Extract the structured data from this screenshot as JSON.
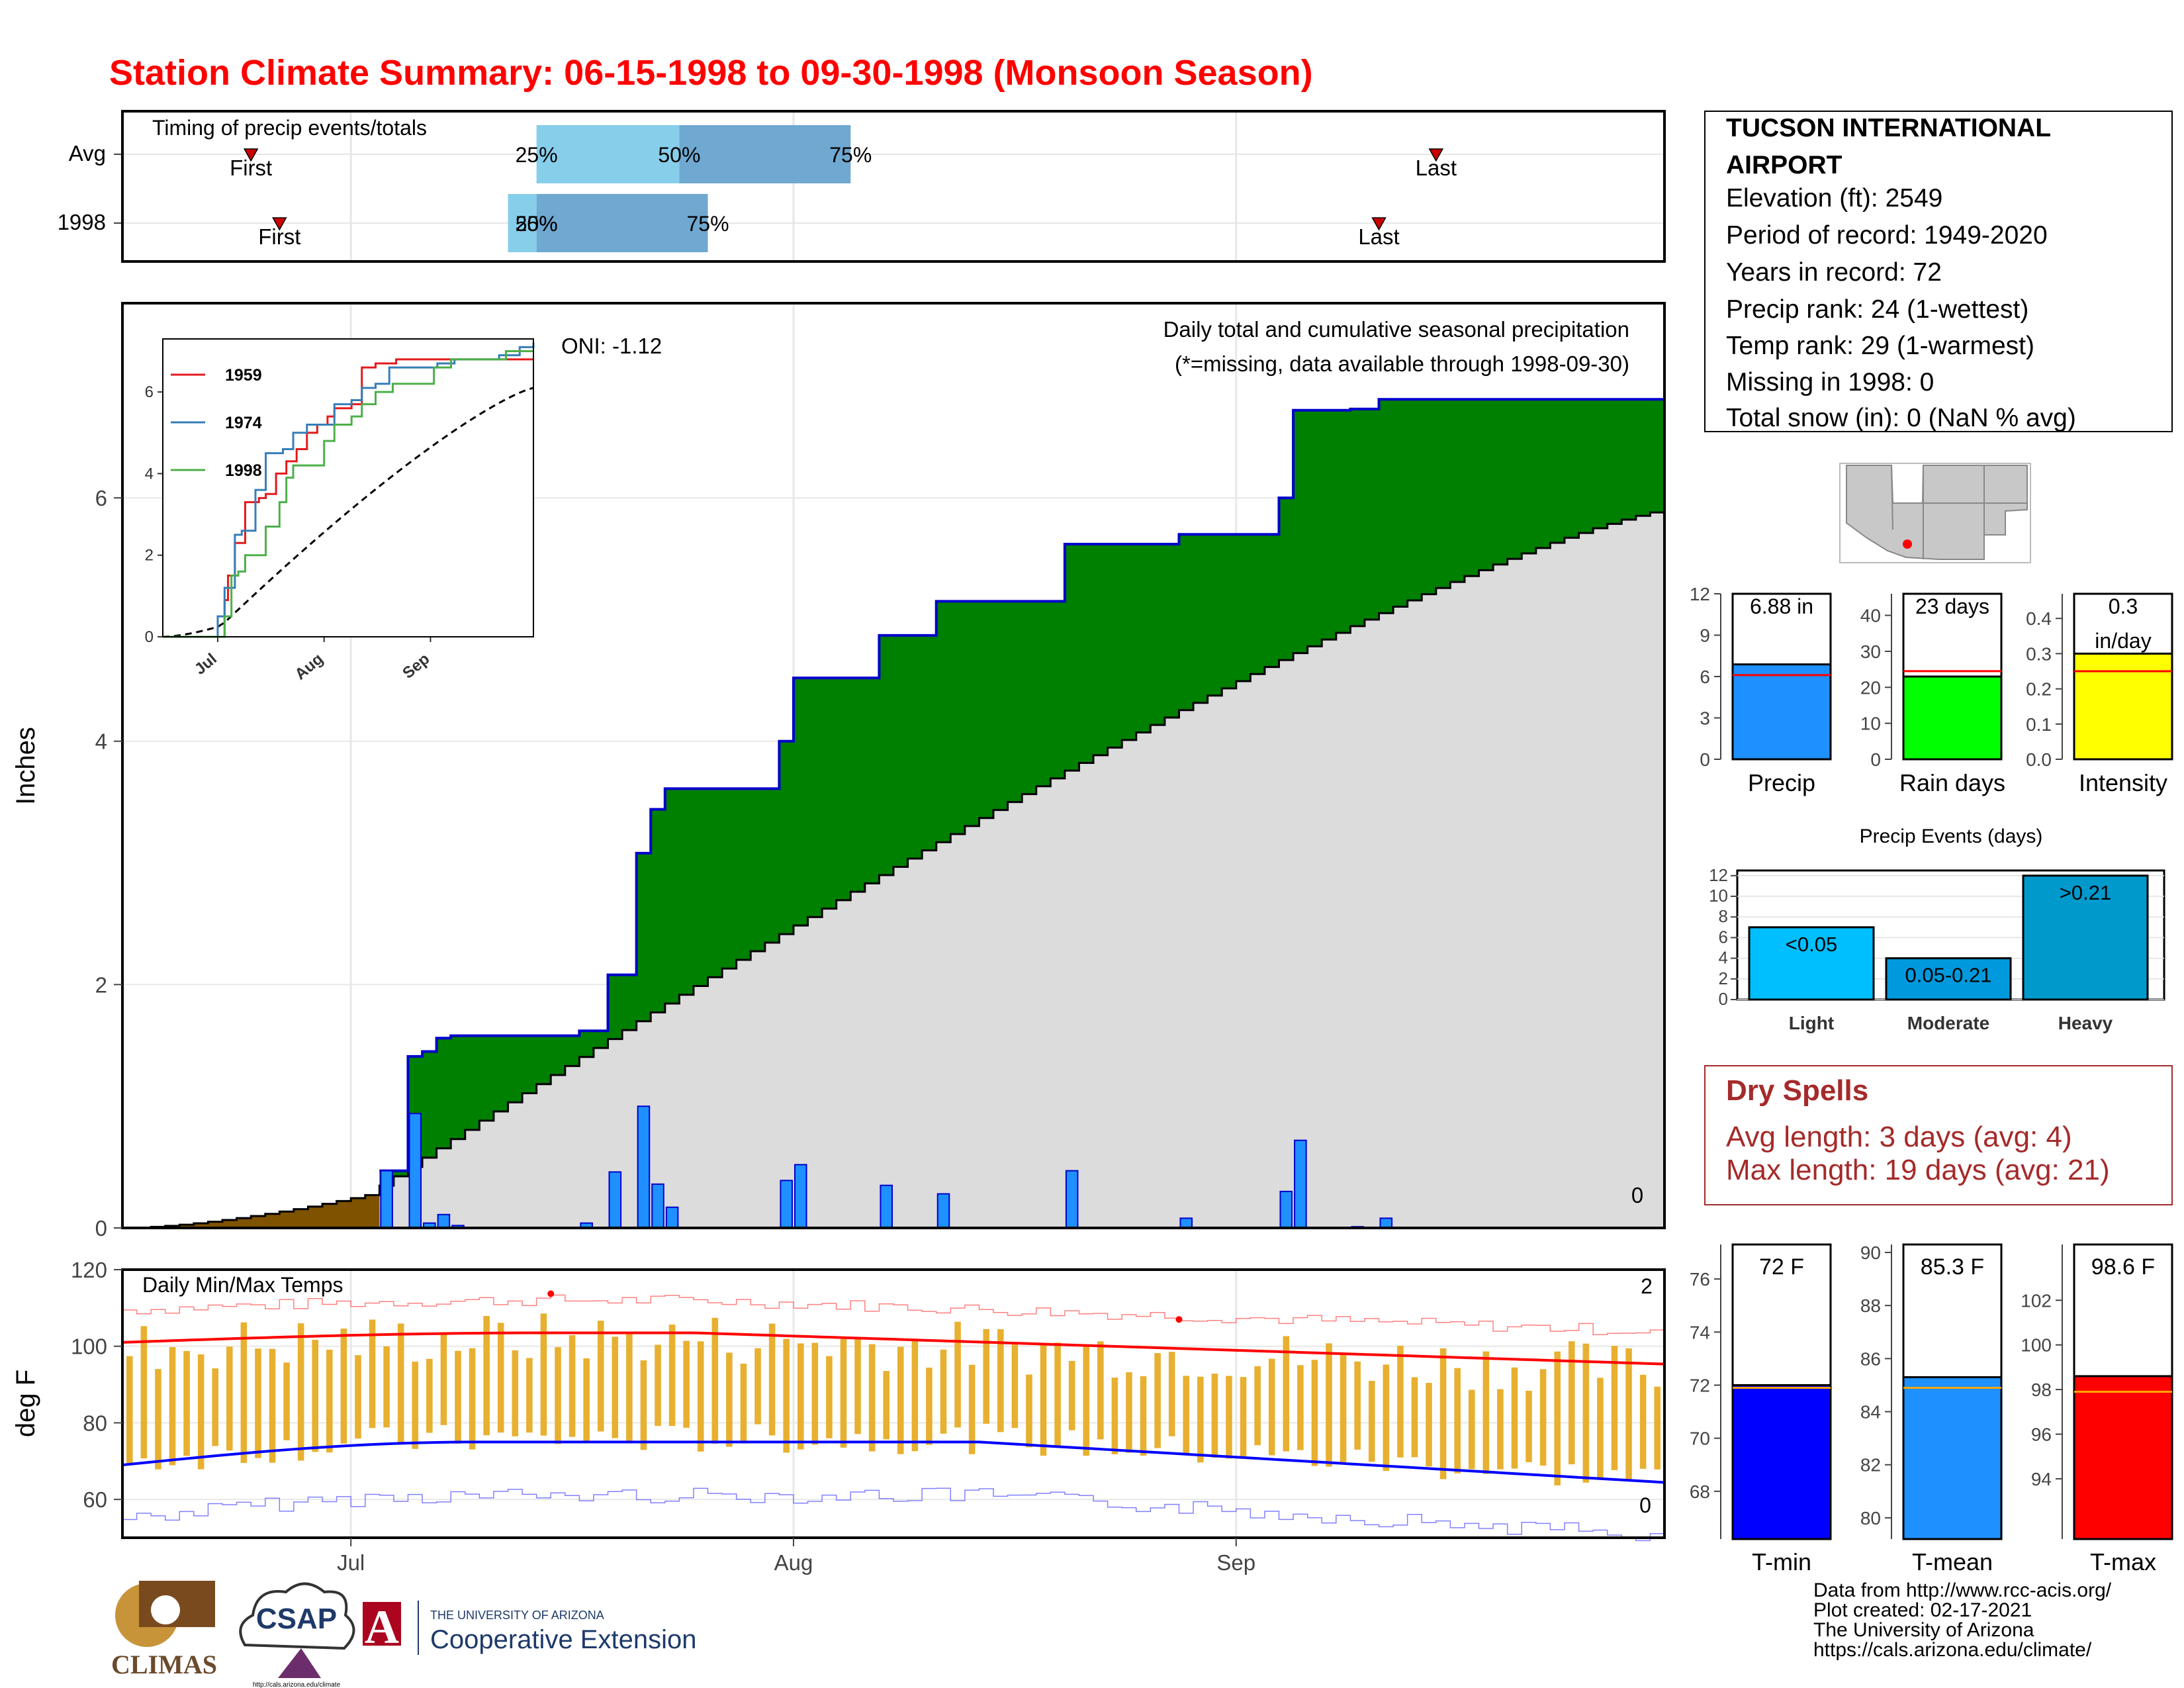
{
  "title": "Station Climate Summary: 06-15-1998 to 09-30-1998 (Monsoon Season)",
  "station": {
    "name_line1": "TUCSON INTERNATIONAL",
    "name_line2": "AIRPORT",
    "elevation": "Elevation (ft): 2549",
    "period": "Period of record: 1949-2020",
    "years": "Years in record: 72",
    "precip_rank": "Precip rank: 24 (1-wettest)",
    "temp_rank": "Temp rank: 29 (1-warmest)",
    "missing": "Missing in 1998: 0",
    "snow": "Total snow (in): 0 (NaN % avg)"
  },
  "dry_spells": {
    "title": "Dry Spells",
    "avg": "Avg length: 3 days (avg: 4)",
    "max": "Max length: 19 days (avg: 21)"
  },
  "footer": {
    "line1": "Data from http://www.rcc-acis.org/",
    "line2": "Plot created: 02-17-2021",
    "line3": "The University of Arizona",
    "line4": "https://cals.arizona.edu/climate/"
  },
  "logos": {
    "climas": "CLIMAS",
    "csap": "CSAP",
    "csap_url": "http://cals.arizona.edu/climate",
    "ua_small": "THE UNIVERSITY OF ARIZONA",
    "ua_big": "Cooperative Extension",
    "ua_letter": "A"
  },
  "colors": {
    "title": "#ff0000",
    "above_normal": "#008000",
    "cumulative_line": "#0000cd",
    "daily_bar": "#1e90ff",
    "normal_fill": "#dcdcdc",
    "pre_season": "#7f5200",
    "temp_bar": "#e8b030",
    "tmax_line": "#ff0000",
    "tmin_line": "#0000ff",
    "timing_light": "#87ceeb",
    "timing_dark": "#6fa8d0"
  },
  "chart_data": [
    {
      "id": "timing",
      "type": "bar",
      "title": "Timing of precip events/totals",
      "categories": [
        "Avg",
        "1998"
      ],
      "quartiles_day_of_season": {
        "Avg": [
          29,
          39,
          51
        ],
        "1998": [
          29,
          29,
          41
        ]
      },
      "range_light_start": {
        "Avg": 29,
        "1998": 27
      },
      "first_day": {
        "Avg": 9,
        "1998": 11
      },
      "last_day": {
        "Avg": 92,
        "1998": 88
      },
      "labels": {
        "q25": "25%",
        "q50": "50%",
        "q75": "75%",
        "first": "First",
        "last": "Last"
      }
    },
    {
      "id": "precip",
      "type": "area",
      "title": "Daily total and cumulative seasonal precipitation",
      "subtitle": "(*=missing, data available through 1998-09-30)",
      "annotation": "ONI: -1.12",
      "missing_count": "0",
      "ylabel": "Inches",
      "ylim": [
        0,
        7.6
      ],
      "yticks": [
        0,
        2,
        4,
        6
      ],
      "xlim_days": [
        0,
        108
      ],
      "xticks": [
        {
          "day": 16,
          "label": "Jul"
        },
        {
          "day": 47,
          "label": "Aug"
        },
        {
          "day": 78,
          "label": "Sep"
        }
      ],
      "daily_1998": [
        [
          18,
          0.47
        ],
        [
          20,
          0.94
        ],
        [
          21,
          0.04
        ],
        [
          22,
          0.11
        ],
        [
          23,
          0.02
        ],
        [
          32,
          0.04
        ],
        [
          34,
          0.46
        ],
        [
          36,
          1.0
        ],
        [
          37,
          0.36
        ],
        [
          38,
          0.17
        ],
        [
          46,
          0.39
        ],
        [
          47,
          0.52
        ],
        [
          53,
          0.35
        ],
        [
          57,
          0.28
        ],
        [
          66,
          0.47
        ],
        [
          74,
          0.08
        ],
        [
          81,
          0.3
        ],
        [
          82,
          0.72
        ],
        [
          86,
          0.01
        ],
        [
          88,
          0.08
        ]
      ],
      "cumulative_normal_end": 5.9,
      "pre_season_cumulative_end_day17": 0.27
    },
    {
      "id": "inset",
      "type": "line",
      "series": [
        {
          "name": "1959"
        },
        {
          "name": "1974"
        },
        {
          "name": "1998"
        }
      ],
      "ylim": [
        0,
        7.3
      ],
      "yticks": [
        0,
        2,
        4,
        6
      ],
      "xticks": [
        "Jul",
        "Aug",
        "Sep"
      ]
    },
    {
      "id": "temps",
      "type": "line",
      "title": "Daily Min/Max Temps",
      "ylabel": "deg F",
      "ylim": [
        50,
        120
      ],
      "yticks": [
        60,
        80,
        100,
        120
      ],
      "count_hot": "2",
      "count_cold": "0",
      "record_high_days": [
        30,
        74
      ]
    },
    {
      "id": "precip_summary",
      "type": "bar",
      "categories": [
        "Precip",
        "Rain days",
        "Intensity"
      ],
      "values": [
        6.88,
        23,
        0.3
      ],
      "normals": [
        6.1,
        24.5,
        0.25
      ],
      "value_labels": [
        "6.88 in",
        "23 days",
        "0.3 in/day"
      ],
      "ylims": [
        [
          0,
          12
        ],
        [
          0,
          46
        ],
        [
          0,
          0.47
        ]
      ],
      "yticks": [
        [
          0,
          3,
          6,
          9,
          12
        ],
        [
          0,
          10,
          20,
          30,
          40
        ],
        [
          0.0,
          0.1,
          0.2,
          0.3,
          0.4
        ]
      ],
      "ytick_labels": [
        [
          "0",
          "3",
          "6",
          "9",
          "12"
        ],
        [
          "0",
          "10",
          "20",
          "30",
          "40"
        ],
        [
          "0.0",
          "0.1",
          "0.2",
          "0.3",
          "0.4"
        ]
      ]
    },
    {
      "id": "precip_events",
      "type": "bar",
      "title": "Precip Events (days)",
      "categories": [
        "Light",
        "Moderate",
        "Heavy"
      ],
      "bar_labels": [
        "<0.05",
        "0.05-0.21",
        ">0.21"
      ],
      "values": [
        7,
        4,
        12
      ],
      "ylim": [
        0,
        12
      ],
      "yticks": [
        0,
        2,
        4,
        6,
        8,
        10,
        12
      ]
    },
    {
      "id": "temp_summary",
      "type": "bar",
      "categories": [
        "T-min",
        "T-mean",
        "T-max"
      ],
      "values": [
        72,
        85.3,
        98.6
      ],
      "normals": [
        71.9,
        84.9,
        97.9
      ],
      "value_labels": [
        "72 F",
        "85.3 F",
        "98.6 F"
      ],
      "ylims": [
        [
          66.2,
          77.3
        ],
        [
          79.2,
          90.3
        ],
        [
          91.3,
          104.5
        ]
      ],
      "yticks": [
        [
          68,
          70,
          72,
          74,
          76
        ],
        [
          80,
          82,
          84,
          86,
          88,
          90
        ],
        [
          94,
          96,
          98,
          100,
          102
        ]
      ]
    }
  ]
}
